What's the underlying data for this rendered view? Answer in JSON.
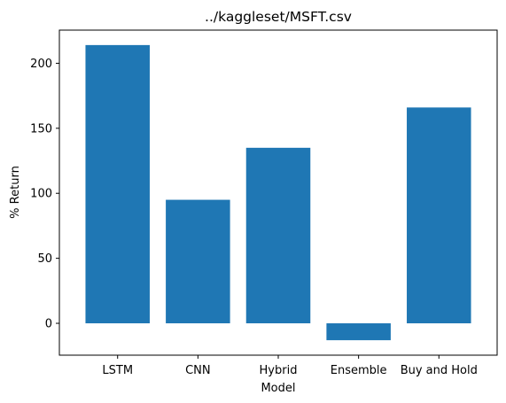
{
  "chart_data": {
    "type": "bar",
    "title": "../kaggleset/MSFT.csv",
    "xlabel": "Model",
    "ylabel": "% Return",
    "categories": [
      "LSTM",
      "CNN",
      "Hybrid",
      "Ensemble",
      "Buy and Hold"
    ],
    "values": [
      214,
      95,
      135,
      -13,
      166
    ],
    "ylim": [
      -24.5,
      225.5
    ],
    "yticks": [
      0,
      50,
      100,
      150,
      200
    ],
    "grid": false,
    "legend": "none",
    "bar_color": "#1f77b4"
  }
}
